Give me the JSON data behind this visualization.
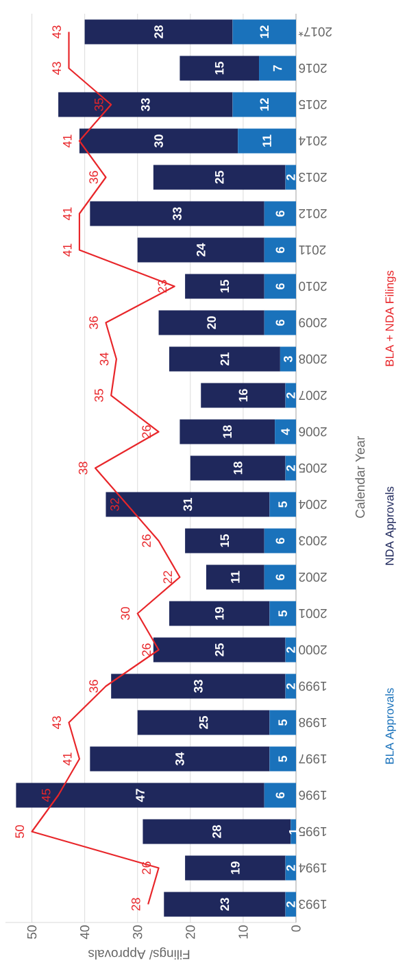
{
  "chart_data": {
    "type": "bar",
    "orientation": "horizontal",
    "xlabel": "Filings/ Approvals",
    "ylabel": "Calendar Year",
    "categories": [
      "2017*",
      "2016",
      "2015",
      "2014",
      "2013",
      "2012",
      "2011",
      "2010",
      "2009",
      "2008",
      "2007",
      "2006",
      "2005",
      "2004",
      "2003",
      "2002",
      "2001",
      "2000",
      "1999",
      "1998",
      "1997",
      "1996",
      "1995",
      "1994",
      "1993"
    ],
    "series": [
      {
        "name": "BLA Approvals",
        "color": "#1a72bb",
        "values": [
          12,
          7,
          12,
          11,
          2,
          6,
          6,
          6,
          6,
          3,
          2,
          4,
          2,
          5,
          6,
          6,
          5,
          2,
          2,
          5,
          5,
          6,
          1,
          2,
          2
        ]
      },
      {
        "name": "NDA Approvals",
        "color": "#1f285c",
        "values": [
          28,
          15,
          33,
          30,
          25,
          33,
          24,
          15,
          20,
          21,
          16,
          18,
          18,
          31,
          15,
          11,
          19,
          25,
          33,
          25,
          34,
          47,
          28,
          19,
          23
        ]
      },
      {
        "name": "BLA + NDA Filings",
        "type": "line",
        "color": "#e8262a",
        "values": [
          43,
          43,
          35,
          41,
          36,
          41,
          41,
          23,
          36,
          34,
          35,
          26,
          38,
          32,
          26,
          22,
          30,
          26,
          36,
          43,
          41,
          45,
          50,
          26,
          28
        ]
      }
    ],
    "stacked": true,
    "data_labels": true,
    "grid": "x",
    "legend": "right",
    "xlim": [
      55,
      0
    ],
    "xticks": [
      0,
      10,
      20,
      30,
      40,
      50
    ]
  }
}
